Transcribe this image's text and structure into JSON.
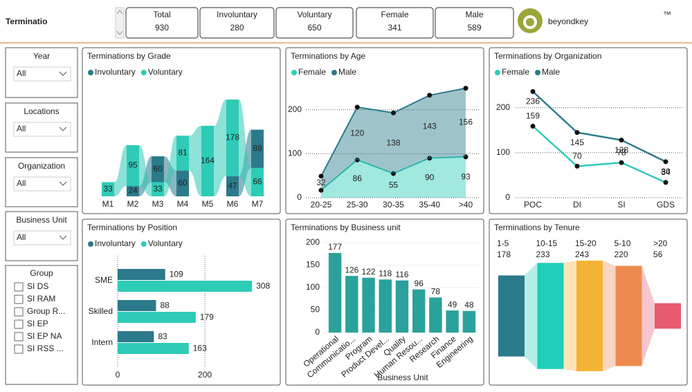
{
  "header": {
    "title": "Terminatio",
    "logo": "beyondkey",
    "trademark": "™"
  },
  "kpis": [
    {
      "label": "Total",
      "value": 930
    },
    {
      "label": "Involuntary",
      "value": 280
    },
    {
      "label": "Voluntary",
      "value": 650
    },
    {
      "label": "Female",
      "value": 341
    },
    {
      "label": "Male",
      "value": 589
    }
  ],
  "slicers": [
    {
      "label": "Year",
      "value": "All"
    },
    {
      "label": "Locations",
      "value": "All"
    },
    {
      "label": "Organization",
      "value": "All"
    },
    {
      "label": "Business Unit",
      "value": "All"
    }
  ],
  "group_filter": {
    "label": "Group",
    "items": [
      "SI DS",
      "SI RAM",
      "Group R...",
      "SI EP",
      "SI EP NA",
      "SI RSS ..."
    ]
  },
  "chart_data": [
    {
      "type": "ribbon",
      "title": "Terminations by Grade",
      "categories": [
        "M1",
        "M2",
        "M3",
        "M4",
        "M5",
        "M6",
        "M7"
      ],
      "series": [
        {
          "name": "Involuntary",
          "color": "#2b7a8b",
          "values": [
            null,
            24,
            60,
            60,
            null,
            47,
            89
          ]
        },
        {
          "name": "Voluntary",
          "color": "#2ecbb7",
          "values": [
            33,
            95,
            33,
            81,
            164,
            178,
            66
          ]
        }
      ]
    },
    {
      "type": "stacked-area",
      "title": "Terminations by Age",
      "categories": [
        "20-25",
        "25-30",
        "30-35",
        "35-40",
        ">40"
      ],
      "series": [
        {
          "name": "Female",
          "color": "#2ecbb7",
          "values": [
            17,
            86,
            55,
            90,
            93
          ]
        },
        {
          "name": "Male",
          "color": "#2b7a8b",
          "values": [
            32,
            120,
            138,
            143,
            156
          ]
        }
      ],
      "ylim": [
        0,
        250
      ],
      "yticks": [
        0,
        100,
        200
      ],
      "grid": true
    },
    {
      "type": "line",
      "title": "Terminations by Organization",
      "categories": [
        "POC",
        "DI",
        "SI",
        "GDS"
      ],
      "series": [
        {
          "name": "Female",
          "color": "#2ecbb7",
          "values": [
            159,
            70,
            78,
            34
          ]
        },
        {
          "name": "Male",
          "color": "#2b7a8b",
          "values": [
            236,
            145,
            128,
            80
          ]
        }
      ],
      "ylim": [
        0,
        255
      ],
      "yticks": [
        0,
        100,
        200
      ],
      "grid": true
    },
    {
      "type": "hbar",
      "title": "Terminations by Position",
      "categories": [
        "SME",
        "Skilled",
        "Intern"
      ],
      "series": [
        {
          "name": "Involuntary",
          "color": "#2b7a8b",
          "values": [
            109,
            88,
            83
          ]
        },
        {
          "name": "Voluntary",
          "color": "#2ecbb7",
          "values": [
            308,
            179,
            163
          ]
        }
      ],
      "xlim": [
        0,
        330
      ],
      "xticks": [
        0,
        200
      ],
      "grid": true
    },
    {
      "type": "bar",
      "title": "Terminations by Business unit",
      "x_label": "Business Unit",
      "categories": [
        "Operational",
        "Communicatio...",
        "Program",
        "Product Devel...",
        "Quality",
        "Human Resou...",
        "Research",
        "Finance",
        "Engineering"
      ],
      "values": [
        177,
        126,
        122,
        118,
        116,
        96,
        78,
        49,
        48
      ],
      "color": "#2aa19a",
      "ylim": [
        0,
        200
      ],
      "yticks": [
        0,
        50,
        100,
        150,
        200
      ],
      "grid": true
    },
    {
      "type": "funnel",
      "title": "Terminations by Tenure",
      "categories": [
        "1-5",
        "10-15",
        "15-20",
        "5-10",
        ">20"
      ],
      "values": [
        178,
        233,
        243,
        220,
        56
      ],
      "colors": [
        "#2b7a8b",
        "#1fcfb7",
        "#f5b335",
        "#ee8a50",
        "#e85a70"
      ]
    }
  ]
}
